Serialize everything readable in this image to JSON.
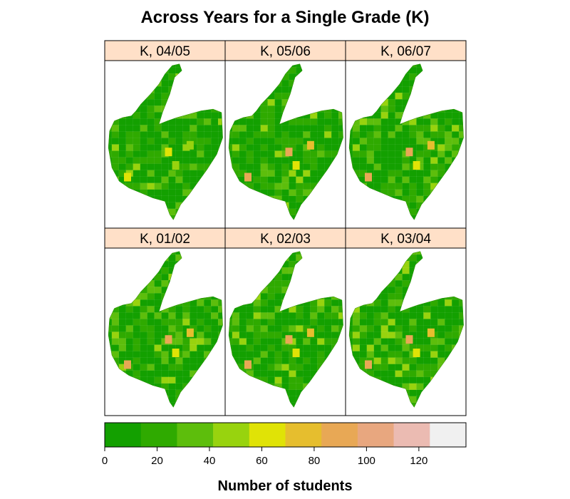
{
  "chart_data": {
    "type": "heatmap",
    "title": "Across Years for a Single Grade (K)",
    "panels": [
      {
        "label": "K, 04/05",
        "max_value": 64,
        "seed": 4
      },
      {
        "label": "K, 05/06",
        "max_value": 92,
        "seed": 5
      },
      {
        "label": "K, 06/07",
        "max_value": 92,
        "seed": 6
      },
      {
        "label": "K, 01/02",
        "max_value": 88,
        "seed": 1
      },
      {
        "label": "K, 02/03",
        "max_value": 90,
        "seed": 2
      },
      {
        "label": "K, 03/04",
        "max_value": 84,
        "seed": 3
      }
    ],
    "layout": {
      "columns": 3,
      "rows": 2
    },
    "colorkey": {
      "xlabel": "Number of students",
      "breaks": [
        0,
        13.8,
        27.6,
        41.4,
        55.2,
        69,
        82.8,
        96.6,
        110.4,
        124.2,
        138
      ],
      "colors": [
        "#13A000",
        "#2FAA00",
        "#5DBE0C",
        "#98D30E",
        "#E0E306",
        "#E6BE2E",
        "#E8A855",
        "#E8A77F",
        "#EBBBB2",
        "#F0F0F0"
      ],
      "ticks": [
        0,
        20,
        40,
        60,
        80,
        100,
        120
      ],
      "range": [
        0,
        138
      ]
    },
    "strip_color": "#FFE0C8",
    "grid": false
  }
}
